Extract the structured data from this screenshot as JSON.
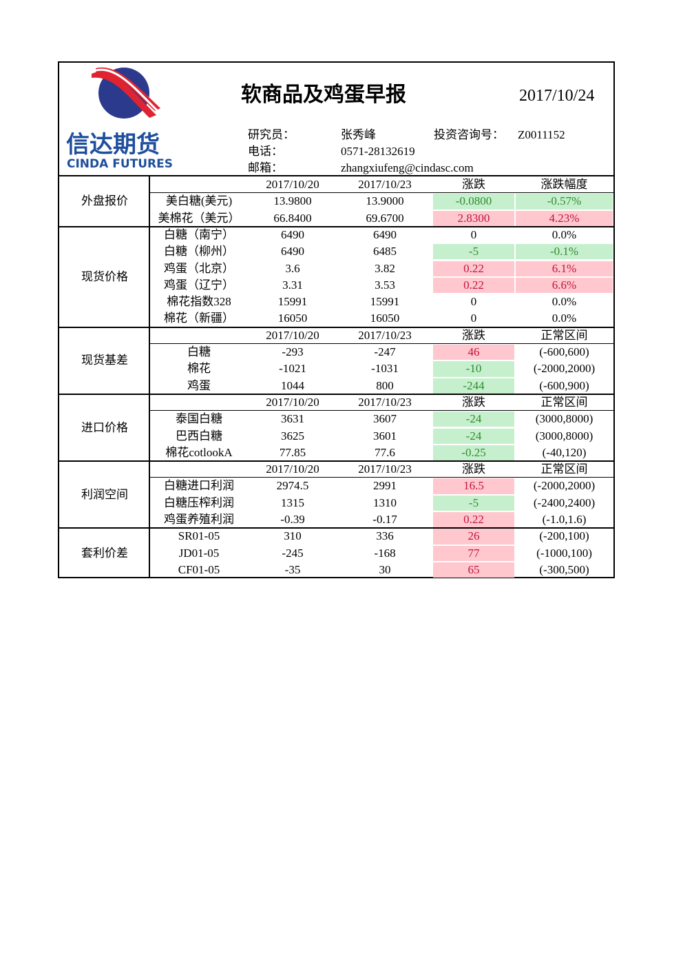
{
  "header": {
    "logo_cn": "信达期货",
    "logo_en": "CINDA FUTURES",
    "title": "软商品及鸡蛋早报",
    "date": "2017/10/24",
    "info": [
      [
        "研究员：",
        "张秀峰",
        "投资咨询号：",
        "Z0011152"
      ],
      [
        "电话：",
        "0571-28132619"
      ],
      [
        "邮箱：",
        "zhangxiufeng@cindasc.com"
      ]
    ]
  },
  "sections": [
    {
      "label": "外盘报价",
      "header": [
        "2017/10/20",
        "2017/10/23",
        "涨跌",
        "涨跌幅度"
      ],
      "rows": [
        [
          "美白糖(美元)",
          "13.9800",
          "13.9000",
          "-0.0800",
          "-0.57%"
        ],
        [
          "美棉花（美元）",
          "66.8400",
          "69.6700",
          "2.8300",
          "4.23%"
        ]
      ]
    },
    {
      "label": "现货价格",
      "rows": [
        [
          "白糖（南宁）",
          "6490",
          "6490",
          "0",
          "0.0%"
        ],
        [
          "白糖（柳州）",
          "6490",
          "6485",
          "-5",
          "-0.1%"
        ],
        [
          "鸡蛋（北京）",
          "3.6",
          "3.82",
          "0.22",
          "6.1%"
        ],
        [
          "鸡蛋（辽宁）",
          "3.31",
          "3.53",
          "0.22",
          "6.6%"
        ],
        [
          "棉花指数328",
          "15991",
          "15991",
          "0",
          "0.0%"
        ],
        [
          "棉花（新疆）",
          "16050",
          "16050",
          "0",
          "0.0%"
        ]
      ]
    },
    {
      "label": "现货基差",
      "header": [
        "2017/10/20",
        "2017/10/23",
        "涨跌",
        "正常区间"
      ],
      "rows": [
        [
          "白糖",
          "-293",
          "-247",
          "46",
          "(-600,600)"
        ],
        [
          "棉花",
          "-1021",
          "-1031",
          "-10",
          "(-2000,2000)"
        ],
        [
          "鸡蛋",
          "1044",
          "800",
          "-244",
          "(-600,900)"
        ]
      ]
    },
    {
      "label": "进口价格",
      "header": [
        "2017/10/20",
        "2017/10/23",
        "涨跌",
        "正常区间"
      ],
      "rows": [
        [
          "泰国白糖",
          "3631",
          "3607",
          "-24",
          "(3000,8000)"
        ],
        [
          "巴西白糖",
          "3625",
          "3601",
          "-24",
          "(3000,8000)"
        ],
        [
          "棉花cotlookA",
          "77.85",
          "77.6",
          "-0.25",
          "(-40,120)"
        ]
      ]
    },
    {
      "label": "利润空间",
      "header": [
        "2017/10/20",
        "2017/10/23",
        "涨跌",
        "正常区间"
      ],
      "rows": [
        [
          "白糖进口利润",
          "2974.5",
          "2991",
          "16.5",
          "(-2000,2000)"
        ],
        [
          "白糖压榨利润",
          "1315",
          "1310",
          "-5",
          "(-2400,2400)"
        ],
        [
          "鸡蛋养殖利润",
          "-0.39",
          "-0.17",
          "0.22",
          "(-1.0,1.6)"
        ]
      ]
    },
    {
      "label": "套利价差",
      "rows": [
        [
          "SR01-05",
          "310",
          "336",
          "26",
          "(-200,100)"
        ],
        [
          "JD01-05",
          "-245",
          "-168",
          "77",
          "(-1000,100)"
        ],
        [
          "CF01-05",
          "-35",
          "30",
          "65",
          "(-300,500)"
        ]
      ]
    }
  ]
}
